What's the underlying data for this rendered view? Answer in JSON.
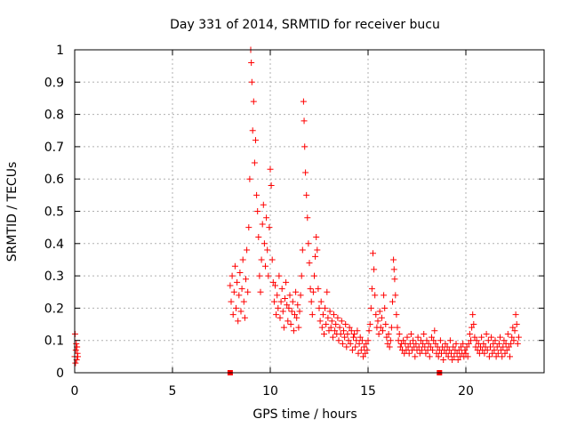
{
  "chart_data": {
    "type": "scatter",
    "title": "Day 331 of 2014, SRMTID for receiver bucu",
    "xlabel": "GPS time / hours",
    "ylabel": "SRMTID / TECUs",
    "xlim": [
      0,
      24
    ],
    "ylim": [
      0,
      1
    ],
    "xticks": [
      0,
      5,
      10,
      15,
      20
    ],
    "yticks": [
      0,
      0.1,
      0.2,
      0.3,
      0.4,
      0.5,
      0.6,
      0.7,
      0.8,
      0.9,
      1
    ],
    "xtick_labels": [
      "0",
      "5",
      "10",
      "15",
      "20"
    ],
    "ytick_labels": [
      "0",
      "0.1",
      "0.2",
      "0.3",
      "0.4",
      "0.5",
      "0.6",
      "0.7",
      "0.8",
      "0.9",
      "1"
    ],
    "grid": true,
    "marker": "+",
    "color": "#ff0000",
    "series": [
      {
        "name": "SRMTID",
        "points": [
          [
            0.0,
            0.05
          ],
          [
            0.02,
            0.12
          ],
          [
            0.04,
            0.03
          ],
          [
            0.06,
            0.07
          ],
          [
            0.08,
            0.09
          ],
          [
            0.1,
            0.04
          ],
          [
            0.12,
            0.08
          ],
          [
            0.14,
            0.06
          ],
          [
            0.16,
            0.05
          ],
          [
            7.95,
            0.27
          ],
          [
            8.0,
            0.22
          ],
          [
            8.05,
            0.3
          ],
          [
            8.1,
            0.18
          ],
          [
            8.15,
            0.25
          ],
          [
            8.2,
            0.33
          ],
          [
            8.25,
            0.2
          ],
          [
            8.3,
            0.28
          ],
          [
            8.35,
            0.16
          ],
          [
            8.4,
            0.24
          ],
          [
            8.45,
            0.31
          ],
          [
            8.5,
            0.19
          ],
          [
            8.55,
            0.26
          ],
          [
            8.6,
            0.35
          ],
          [
            8.65,
            0.22
          ],
          [
            8.7,
            0.17
          ],
          [
            8.75,
            0.29
          ],
          [
            8.8,
            0.38
          ],
          [
            8.85,
            0.25
          ],
          [
            8.9,
            0.45
          ],
          [
            8.95,
            0.6
          ],
          [
            9.0,
            1.0
          ],
          [
            9.03,
            0.96
          ],
          [
            9.06,
            0.9
          ],
          [
            9.1,
            0.75
          ],
          [
            9.15,
            0.84
          ],
          [
            9.2,
            0.65
          ],
          [
            9.25,
            0.72
          ],
          [
            9.3,
            0.55
          ],
          [
            9.35,
            0.5
          ],
          [
            9.4,
            0.42
          ],
          [
            9.45,
            0.3
          ],
          [
            9.5,
            0.25
          ],
          [
            9.55,
            0.35
          ],
          [
            9.6,
            0.46
          ],
          [
            9.65,
            0.52
          ],
          [
            9.7,
            0.4
          ],
          [
            9.75,
            0.33
          ],
          [
            9.8,
            0.48
          ],
          [
            9.85,
            0.38
          ],
          [
            9.9,
            0.3
          ],
          [
            9.95,
            0.45
          ],
          [
            10.0,
            0.63
          ],
          [
            10.05,
            0.58
          ],
          [
            10.1,
            0.35
          ],
          [
            10.15,
            0.28
          ],
          [
            10.2,
            0.22
          ],
          [
            10.25,
            0.27
          ],
          [
            10.3,
            0.18
          ],
          [
            10.35,
            0.24
          ],
          [
            10.4,
            0.2
          ],
          [
            10.45,
            0.3
          ],
          [
            10.5,
            0.17
          ],
          [
            10.55,
            0.22
          ],
          [
            10.6,
            0.26
          ],
          [
            10.65,
            0.19
          ],
          [
            10.7,
            0.14
          ],
          [
            10.75,
            0.23
          ],
          [
            10.8,
            0.28
          ],
          [
            10.85,
            0.21
          ],
          [
            10.9,
            0.16
          ],
          [
            10.95,
            0.2
          ],
          [
            11.0,
            0.24
          ],
          [
            11.05,
            0.15
          ],
          [
            11.1,
            0.19
          ],
          [
            11.15,
            0.22
          ],
          [
            11.2,
            0.13
          ],
          [
            11.25,
            0.18
          ],
          [
            11.3,
            0.25
          ],
          [
            11.35,
            0.17
          ],
          [
            11.4,
            0.21
          ],
          [
            11.45,
            0.14
          ],
          [
            11.5,
            0.19
          ],
          [
            11.55,
            0.24
          ],
          [
            11.6,
            0.3
          ],
          [
            11.65,
            0.38
          ],
          [
            11.7,
            0.84
          ],
          [
            11.73,
            0.78
          ],
          [
            11.76,
            0.7
          ],
          [
            11.8,
            0.62
          ],
          [
            11.85,
            0.55
          ],
          [
            11.9,
            0.48
          ],
          [
            11.95,
            0.4
          ],
          [
            12.0,
            0.34
          ],
          [
            12.05,
            0.26
          ],
          [
            12.1,
            0.22
          ],
          [
            12.15,
            0.18
          ],
          [
            12.2,
            0.25
          ],
          [
            12.25,
            0.3
          ],
          [
            12.3,
            0.36
          ],
          [
            12.35,
            0.42
          ],
          [
            12.4,
            0.38
          ],
          [
            12.45,
            0.26
          ],
          [
            12.5,
            0.2
          ],
          [
            12.55,
            0.16
          ],
          [
            12.6,
            0.22
          ],
          [
            12.65,
            0.14
          ],
          [
            12.7,
            0.18
          ],
          [
            12.75,
            0.12
          ],
          [
            12.8,
            0.2
          ],
          [
            12.85,
            0.15
          ],
          [
            12.9,
            0.25
          ],
          [
            12.95,
            0.17
          ],
          [
            13.0,
            0.13
          ],
          [
            13.05,
            0.19
          ],
          [
            13.1,
            0.14
          ],
          [
            13.15,
            0.16
          ],
          [
            13.2,
            0.11
          ],
          [
            13.25,
            0.18
          ],
          [
            13.3,
            0.13
          ],
          [
            13.35,
            0.15
          ],
          [
            13.4,
            0.12
          ],
          [
            13.45,
            0.17
          ],
          [
            13.5,
            0.1
          ],
          [
            13.55,
            0.14
          ],
          [
            13.6,
            0.12
          ],
          [
            13.65,
            0.16
          ],
          [
            13.7,
            0.09
          ],
          [
            13.75,
            0.13
          ],
          [
            13.8,
            0.11
          ],
          [
            13.85,
            0.15
          ],
          [
            13.9,
            0.08
          ],
          [
            13.95,
            0.12
          ],
          [
            14.0,
            0.1
          ],
          [
            14.05,
            0.14
          ],
          [
            14.1,
            0.09
          ],
          [
            14.15,
            0.13
          ],
          [
            14.2,
            0.07
          ],
          [
            14.25,
            0.11
          ],
          [
            14.3,
            0.12
          ],
          [
            14.35,
            0.08
          ],
          [
            14.4,
            0.1
          ],
          [
            14.45,
            0.13
          ],
          [
            14.5,
            0.06
          ],
          [
            14.55,
            0.09
          ],
          [
            14.6,
            0.11
          ],
          [
            14.65,
            0.07
          ],
          [
            14.7,
            0.1
          ],
          [
            14.75,
            0.05
          ],
          [
            14.8,
            0.08
          ],
          [
            14.85,
            0.06
          ],
          [
            14.9,
            0.09
          ],
          [
            14.95,
            0.07
          ],
          [
            15.0,
            0.1
          ],
          [
            15.05,
            0.13
          ],
          [
            15.1,
            0.15
          ],
          [
            15.15,
            0.2
          ],
          [
            15.2,
            0.26
          ],
          [
            15.25,
            0.37
          ],
          [
            15.3,
            0.32
          ],
          [
            15.35,
            0.24
          ],
          [
            15.4,
            0.18
          ],
          [
            15.45,
            0.14
          ],
          [
            15.5,
            0.16
          ],
          [
            15.55,
            0.12
          ],
          [
            15.6,
            0.19
          ],
          [
            15.65,
            0.14
          ],
          [
            15.7,
            0.17
          ],
          [
            15.75,
            0.13
          ],
          [
            15.8,
            0.24
          ],
          [
            15.85,
            0.2
          ],
          [
            15.9,
            0.15
          ],
          [
            15.95,
            0.11
          ],
          [
            16.0,
            0.09
          ],
          [
            16.05,
            0.12
          ],
          [
            16.1,
            0.08
          ],
          [
            16.15,
            0.1
          ],
          [
            16.2,
            0.14
          ],
          [
            16.25,
            0.22
          ],
          [
            16.3,
            0.35
          ],
          [
            16.33,
            0.32
          ],
          [
            16.36,
            0.29
          ],
          [
            16.4,
            0.24
          ],
          [
            16.45,
            0.18
          ],
          [
            16.5,
            0.14
          ],
          [
            16.55,
            0.1
          ],
          [
            16.6,
            0.12
          ],
          [
            16.65,
            0.08
          ],
          [
            16.7,
            0.09
          ],
          [
            16.75,
            0.07
          ],
          [
            16.8,
            0.1
          ],
          [
            16.85,
            0.06
          ],
          [
            16.9,
            0.09
          ],
          [
            16.95,
            0.07
          ],
          [
            17.0,
            0.11
          ],
          [
            17.05,
            0.08
          ],
          [
            17.1,
            0.06
          ],
          [
            17.15,
            0.09
          ],
          [
            17.2,
            0.12
          ],
          [
            17.25,
            0.07
          ],
          [
            17.3,
            0.1
          ],
          [
            17.35,
            0.08
          ],
          [
            17.4,
            0.05
          ],
          [
            17.45,
            0.09
          ],
          [
            17.5,
            0.07
          ],
          [
            17.55,
            0.11
          ],
          [
            17.6,
            0.08
          ],
          [
            17.65,
            0.06
          ],
          [
            17.7,
            0.1
          ],
          [
            17.75,
            0.07
          ],
          [
            17.8,
            0.09
          ],
          [
            17.85,
            0.12
          ],
          [
            17.9,
            0.08
          ],
          [
            17.95,
            0.06
          ],
          [
            18.0,
            0.1
          ],
          [
            18.05,
            0.07
          ],
          [
            18.1,
            0.09
          ],
          [
            18.15,
            0.05
          ],
          [
            18.2,
            0.08
          ],
          [
            18.25,
            0.11
          ],
          [
            18.3,
            0.07
          ],
          [
            18.35,
            0.1
          ],
          [
            18.4,
            0.13
          ],
          [
            18.45,
            0.09
          ],
          [
            18.5,
            0.06
          ],
          [
            18.55,
            0.08
          ],
          [
            18.6,
            0.05
          ],
          [
            18.65,
            0.07
          ],
          [
            18.7,
            0.1
          ],
          [
            18.75,
            0.06
          ],
          [
            18.8,
            0.08
          ],
          [
            18.85,
            0.04
          ],
          [
            18.9,
            0.07
          ],
          [
            18.95,
            0.09
          ],
          [
            19.0,
            0.06
          ],
          [
            19.05,
            0.08
          ],
          [
            19.1,
            0.05
          ],
          [
            19.15,
            0.07
          ],
          [
            19.2,
            0.1
          ],
          [
            19.25,
            0.06
          ],
          [
            19.3,
            0.04
          ],
          [
            19.35,
            0.08
          ],
          [
            19.4,
            0.05
          ],
          [
            19.45,
            0.07
          ],
          [
            19.5,
            0.09
          ],
          [
            19.55,
            0.06
          ],
          [
            19.6,
            0.04
          ],
          [
            19.65,
            0.07
          ],
          [
            19.7,
            0.05
          ],
          [
            19.75,
            0.08
          ],
          [
            19.8,
            0.06
          ],
          [
            19.85,
            0.09
          ],
          [
            19.9,
            0.05
          ],
          [
            19.95,
            0.07
          ],
          [
            20.0,
            0.06
          ],
          [
            20.05,
            0.08
          ],
          [
            20.1,
            0.05
          ],
          [
            20.15,
            0.09
          ],
          [
            20.2,
            0.12
          ],
          [
            20.25,
            0.1
          ],
          [
            20.3,
            0.14
          ],
          [
            20.35,
            0.18
          ],
          [
            20.4,
            0.15
          ],
          [
            20.45,
            0.11
          ],
          [
            20.5,
            0.08
          ],
          [
            20.55,
            0.1
          ],
          [
            20.6,
            0.07
          ],
          [
            20.65,
            0.09
          ],
          [
            20.7,
            0.06
          ],
          [
            20.75,
            0.08
          ],
          [
            20.8,
            0.11
          ],
          [
            20.85,
            0.07
          ],
          [
            20.9,
            0.09
          ],
          [
            20.95,
            0.06
          ],
          [
            21.0,
            0.08
          ],
          [
            21.05,
            0.12
          ],
          [
            21.1,
            0.07
          ],
          [
            21.15,
            0.1
          ],
          [
            21.2,
            0.05
          ],
          [
            21.25,
            0.08
          ],
          [
            21.3,
            0.11
          ],
          [
            21.35,
            0.06
          ],
          [
            21.4,
            0.09
          ],
          [
            21.45,
            0.07
          ],
          [
            21.5,
            0.1
          ],
          [
            21.55,
            0.05
          ],
          [
            21.6,
            0.08
          ],
          [
            21.65,
            0.06
          ],
          [
            21.7,
            0.09
          ],
          [
            21.75,
            0.11
          ],
          [
            21.8,
            0.07
          ],
          [
            21.85,
            0.05
          ],
          [
            21.9,
            0.08
          ],
          [
            21.95,
            0.1
          ],
          [
            22.0,
            0.06
          ],
          [
            22.05,
            0.09
          ],
          [
            22.1,
            0.07
          ],
          [
            22.15,
            0.12
          ],
          [
            22.2,
            0.08
          ],
          [
            22.25,
            0.05
          ],
          [
            22.3,
            0.09
          ],
          [
            22.35,
            0.11
          ],
          [
            22.4,
            0.14
          ],
          [
            22.45,
            0.1
          ],
          [
            22.5,
            0.13
          ],
          [
            22.55,
            0.18
          ],
          [
            22.6,
            0.15
          ],
          [
            22.65,
            0.09
          ],
          [
            22.7,
            0.11
          ]
        ]
      },
      {
        "name": "zero-markers",
        "marker": "square",
        "points": [
          [
            7.95,
            0.0
          ],
          [
            18.65,
            0.0
          ]
        ]
      }
    ]
  }
}
